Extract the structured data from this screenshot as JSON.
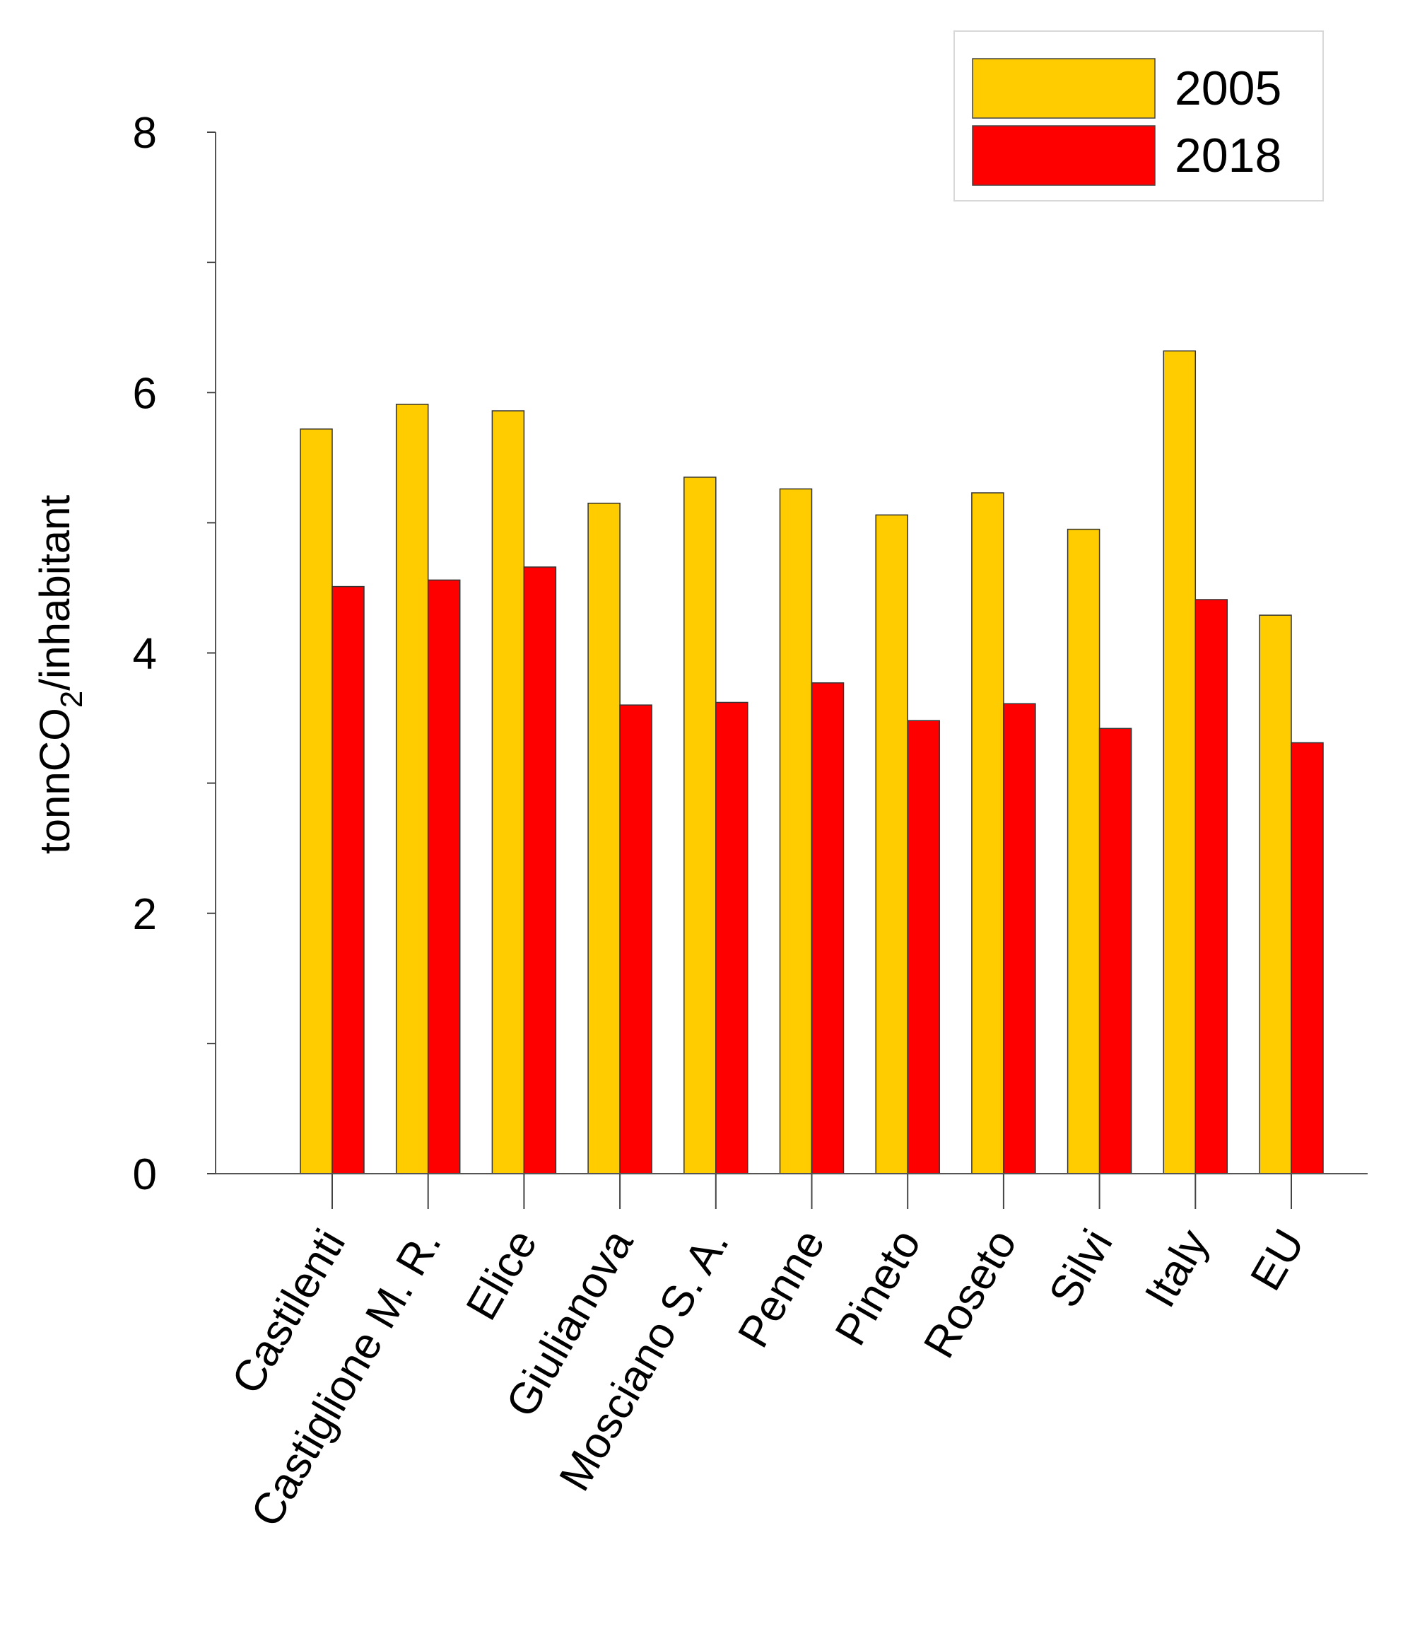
{
  "chart_data": {
    "type": "bar",
    "title": "",
    "xlabel": "",
    "ylabel": "tonnCO",
    "ylabel_subscript": "2",
    "ylabel_suffix": "/inhabitant",
    "ylim": [
      0,
      8
    ],
    "yticks": [
      0,
      2,
      4,
      6,
      8
    ],
    "ytick_labels": [
      "0",
      "2",
      "4",
      "6",
      "8"
    ],
    "categories": [
      "Castilenti",
      "Castiglione M. R.",
      "Elice",
      "Giulianova",
      "Mosciano S. A.",
      "Penne",
      "Pineto",
      "Roseto",
      "Silvi",
      "Italy",
      "EU"
    ],
    "series": [
      {
        "name": "2005",
        "color": "#FFCC00",
        "values": [
          5.72,
          5.91,
          5.86,
          5.15,
          5.35,
          5.26,
          5.06,
          5.23,
          4.95,
          6.32,
          4.29
        ]
      },
      {
        "name": "2018",
        "color": "#FF0000",
        "values": [
          4.51,
          4.56,
          4.66,
          3.6,
          3.62,
          3.77,
          3.48,
          3.61,
          3.42,
          4.41,
          3.31
        ]
      }
    ],
    "legend_position": "top-right",
    "grid": false
  }
}
